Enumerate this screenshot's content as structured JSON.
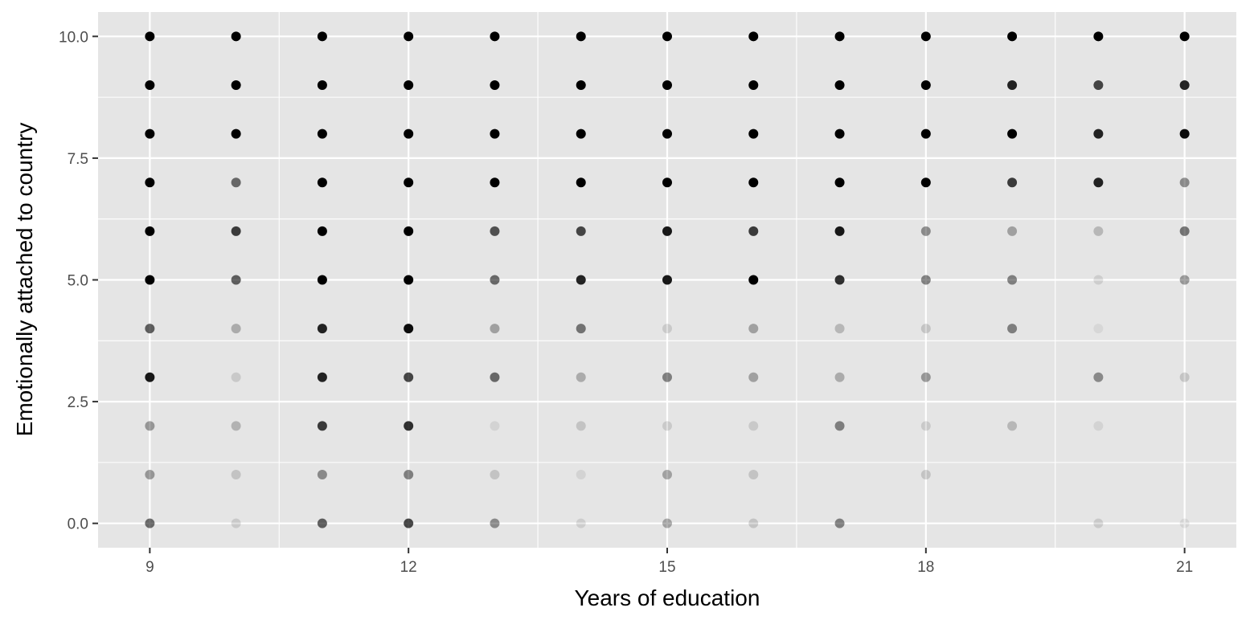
{
  "chart_data": {
    "type": "scatter",
    "xlabel": "Years of education",
    "ylabel": "Emotionally attached to country",
    "xlim": [
      8.4,
      21.6
    ],
    "ylim": [
      -0.5,
      10.5
    ],
    "x_ticks": [
      9,
      12,
      15,
      18,
      21
    ],
    "x_tick_labels": [
      "9",
      "12",
      "15",
      "18",
      "21"
    ],
    "y_ticks": [
      0,
      2.5,
      5,
      7.5,
      10
    ],
    "y_tick_labels": [
      "0.0",
      "2.5",
      "5.0",
      "7.5",
      "10.0"
    ],
    "grid": true,
    "legend": "none",
    "colors": {
      "panel": "#e5e5e5",
      "grid": "#ffffff",
      "point": "#000000",
      "text": "#000000",
      "tick_text": "#4d4d4d",
      "tick": "#333333"
    },
    "point_note": "each point is drawn at alpha opacity; opacity accumulates with overplotting",
    "points": [
      {
        "x": 9,
        "y": 10,
        "opacity": 1.0
      },
      {
        "x": 9,
        "y": 9,
        "opacity": 1.0
      },
      {
        "x": 9,
        "y": 8,
        "opacity": 1.0
      },
      {
        "x": 9,
        "y": 7,
        "opacity": 1.0
      },
      {
        "x": 9,
        "y": 6,
        "opacity": 1.0
      },
      {
        "x": 9,
        "y": 5,
        "opacity": 1.0
      },
      {
        "x": 9,
        "y": 4,
        "opacity": 0.6
      },
      {
        "x": 9,
        "y": 3,
        "opacity": 0.9
      },
      {
        "x": 9,
        "y": 2,
        "opacity": 0.35
      },
      {
        "x": 9,
        "y": 1,
        "opacity": 0.35
      },
      {
        "x": 9,
        "y": 0,
        "opacity": 0.55
      },
      {
        "x": 10,
        "y": 10,
        "opacity": 1.0
      },
      {
        "x": 10,
        "y": 9,
        "opacity": 1.0
      },
      {
        "x": 10,
        "y": 8,
        "opacity": 1.0
      },
      {
        "x": 10,
        "y": 7,
        "opacity": 0.55
      },
      {
        "x": 10,
        "y": 6,
        "opacity": 0.75
      },
      {
        "x": 10,
        "y": 5,
        "opacity": 0.6
      },
      {
        "x": 10,
        "y": 4,
        "opacity": 0.25
      },
      {
        "x": 10,
        "y": 3,
        "opacity": 0.12
      },
      {
        "x": 10,
        "y": 2,
        "opacity": 0.22
      },
      {
        "x": 10,
        "y": 1,
        "opacity": 0.15
      },
      {
        "x": 10,
        "y": 0,
        "opacity": 0.12
      },
      {
        "x": 11,
        "y": 10,
        "opacity": 1.0
      },
      {
        "x": 11,
        "y": 9,
        "opacity": 1.0
      },
      {
        "x": 11,
        "y": 8,
        "opacity": 1.0
      },
      {
        "x": 11,
        "y": 7,
        "opacity": 1.0
      },
      {
        "x": 11,
        "y": 6,
        "opacity": 1.0
      },
      {
        "x": 11,
        "y": 5,
        "opacity": 1.0
      },
      {
        "x": 11,
        "y": 4,
        "opacity": 0.85
      },
      {
        "x": 11,
        "y": 3,
        "opacity": 0.85
      },
      {
        "x": 11,
        "y": 2,
        "opacity": 0.75
      },
      {
        "x": 11,
        "y": 1,
        "opacity": 0.4
      },
      {
        "x": 11,
        "y": 0,
        "opacity": 0.6
      },
      {
        "x": 12,
        "y": 10,
        "opacity": 1.0
      },
      {
        "x": 12,
        "y": 9,
        "opacity": 1.0
      },
      {
        "x": 12,
        "y": 8,
        "opacity": 1.0
      },
      {
        "x": 12,
        "y": 7,
        "opacity": 1.0
      },
      {
        "x": 12,
        "y": 6,
        "opacity": 1.0
      },
      {
        "x": 12,
        "y": 5,
        "opacity": 1.0
      },
      {
        "x": 12,
        "y": 4,
        "opacity": 0.95
      },
      {
        "x": 12,
        "y": 3,
        "opacity": 0.7
      },
      {
        "x": 12,
        "y": 2,
        "opacity": 0.8
      },
      {
        "x": 12,
        "y": 1,
        "opacity": 0.45
      },
      {
        "x": 12,
        "y": 0,
        "opacity": 0.7
      },
      {
        "x": 13,
        "y": 10,
        "opacity": 1.0
      },
      {
        "x": 13,
        "y": 9,
        "opacity": 1.0
      },
      {
        "x": 13,
        "y": 8,
        "opacity": 1.0
      },
      {
        "x": 13,
        "y": 7,
        "opacity": 1.0
      },
      {
        "x": 13,
        "y": 6,
        "opacity": 0.65
      },
      {
        "x": 13,
        "y": 5,
        "opacity": 0.55
      },
      {
        "x": 13,
        "y": 4,
        "opacity": 0.3
      },
      {
        "x": 13,
        "y": 3,
        "opacity": 0.55
      },
      {
        "x": 13,
        "y": 2,
        "opacity": 0.08
      },
      {
        "x": 13,
        "y": 1,
        "opacity": 0.15
      },
      {
        "x": 13,
        "y": 0,
        "opacity": 0.4
      },
      {
        "x": 14,
        "y": 10,
        "opacity": 1.0
      },
      {
        "x": 14,
        "y": 9,
        "opacity": 1.0
      },
      {
        "x": 14,
        "y": 8,
        "opacity": 1.0
      },
      {
        "x": 14,
        "y": 7,
        "opacity": 1.0
      },
      {
        "x": 14,
        "y": 6,
        "opacity": 0.7
      },
      {
        "x": 14,
        "y": 5,
        "opacity": 0.85
      },
      {
        "x": 14,
        "y": 4,
        "opacity": 0.5
      },
      {
        "x": 14,
        "y": 3,
        "opacity": 0.25
      },
      {
        "x": 14,
        "y": 2,
        "opacity": 0.15
      },
      {
        "x": 14,
        "y": 1,
        "opacity": 0.08
      },
      {
        "x": 14,
        "y": 0,
        "opacity": 0.1
      },
      {
        "x": 15,
        "y": 10,
        "opacity": 1.0
      },
      {
        "x": 15,
        "y": 9,
        "opacity": 1.0
      },
      {
        "x": 15,
        "y": 8,
        "opacity": 1.0
      },
      {
        "x": 15,
        "y": 7,
        "opacity": 1.0
      },
      {
        "x": 15,
        "y": 6,
        "opacity": 0.9
      },
      {
        "x": 15,
        "y": 5,
        "opacity": 0.9
      },
      {
        "x": 15,
        "y": 4,
        "opacity": 0.12
      },
      {
        "x": 15,
        "y": 3,
        "opacity": 0.45
      },
      {
        "x": 15,
        "y": 2,
        "opacity": 0.12
      },
      {
        "x": 15,
        "y": 1,
        "opacity": 0.3
      },
      {
        "x": 15,
        "y": 0,
        "opacity": 0.3
      },
      {
        "x": 16,
        "y": 10,
        "opacity": 1.0
      },
      {
        "x": 16,
        "y": 9,
        "opacity": 1.0
      },
      {
        "x": 16,
        "y": 8,
        "opacity": 1.0
      },
      {
        "x": 16,
        "y": 7,
        "opacity": 1.0
      },
      {
        "x": 16,
        "y": 6,
        "opacity": 0.75
      },
      {
        "x": 16,
        "y": 5,
        "opacity": 1.0
      },
      {
        "x": 16,
        "y": 4,
        "opacity": 0.3
      },
      {
        "x": 16,
        "y": 3,
        "opacity": 0.3
      },
      {
        "x": 16,
        "y": 2,
        "opacity": 0.12
      },
      {
        "x": 16,
        "y": 1,
        "opacity": 0.15
      },
      {
        "x": 16,
        "y": 0,
        "opacity": 0.15
      },
      {
        "x": 17,
        "y": 10,
        "opacity": 1.0
      },
      {
        "x": 17,
        "y": 9,
        "opacity": 1.0
      },
      {
        "x": 17,
        "y": 8,
        "opacity": 1.0
      },
      {
        "x": 17,
        "y": 7,
        "opacity": 1.0
      },
      {
        "x": 17,
        "y": 6,
        "opacity": 0.9
      },
      {
        "x": 17,
        "y": 5,
        "opacity": 0.8
      },
      {
        "x": 17,
        "y": 4,
        "opacity": 0.2
      },
      {
        "x": 17,
        "y": 3,
        "opacity": 0.25
      },
      {
        "x": 17,
        "y": 2,
        "opacity": 0.45
      },
      {
        "x": 17,
        "y": 0,
        "opacity": 0.45
      },
      {
        "x": 18,
        "y": 10,
        "opacity": 1.0
      },
      {
        "x": 18,
        "y": 9,
        "opacity": 1.0
      },
      {
        "x": 18,
        "y": 8,
        "opacity": 1.0
      },
      {
        "x": 18,
        "y": 7,
        "opacity": 1.0
      },
      {
        "x": 18,
        "y": 6,
        "opacity": 0.4
      },
      {
        "x": 18,
        "y": 5,
        "opacity": 0.45
      },
      {
        "x": 18,
        "y": 4,
        "opacity": 0.15
      },
      {
        "x": 18,
        "y": 3,
        "opacity": 0.35
      },
      {
        "x": 18,
        "y": 2,
        "opacity": 0.12
      },
      {
        "x": 18,
        "y": 1,
        "opacity": 0.15
      },
      {
        "x": 19,
        "y": 10,
        "opacity": 1.0
      },
      {
        "x": 19,
        "y": 9,
        "opacity": 0.85
      },
      {
        "x": 19,
        "y": 8,
        "opacity": 1.0
      },
      {
        "x": 19,
        "y": 7,
        "opacity": 0.75
      },
      {
        "x": 19,
        "y": 6,
        "opacity": 0.3
      },
      {
        "x": 19,
        "y": 5,
        "opacity": 0.45
      },
      {
        "x": 19,
        "y": 4,
        "opacity": 0.45
      },
      {
        "x": 19,
        "y": 2,
        "opacity": 0.2
      },
      {
        "x": 20,
        "y": 10,
        "opacity": 1.0
      },
      {
        "x": 20,
        "y": 9,
        "opacity": 0.7
      },
      {
        "x": 20,
        "y": 8,
        "opacity": 0.85
      },
      {
        "x": 20,
        "y": 7,
        "opacity": 0.85
      },
      {
        "x": 20,
        "y": 6,
        "opacity": 0.2
      },
      {
        "x": 20,
        "y": 5,
        "opacity": 0.1
      },
      {
        "x": 20,
        "y": 4,
        "opacity": 0.06
      },
      {
        "x": 20,
        "y": 3,
        "opacity": 0.4
      },
      {
        "x": 20,
        "y": 2,
        "opacity": 0.08
      },
      {
        "x": 20,
        "y": 0,
        "opacity": 0.12
      },
      {
        "x": 21,
        "y": 10,
        "opacity": 1.0
      },
      {
        "x": 21,
        "y": 9,
        "opacity": 0.85
      },
      {
        "x": 21,
        "y": 8,
        "opacity": 0.95
      },
      {
        "x": 21,
        "y": 7,
        "opacity": 0.4
      },
      {
        "x": 21,
        "y": 6,
        "opacity": 0.5
      },
      {
        "x": 21,
        "y": 5,
        "opacity": 0.35
      },
      {
        "x": 21,
        "y": 3,
        "opacity": 0.15
      },
      {
        "x": 21,
        "y": 0,
        "opacity": 0.08
      }
    ]
  }
}
